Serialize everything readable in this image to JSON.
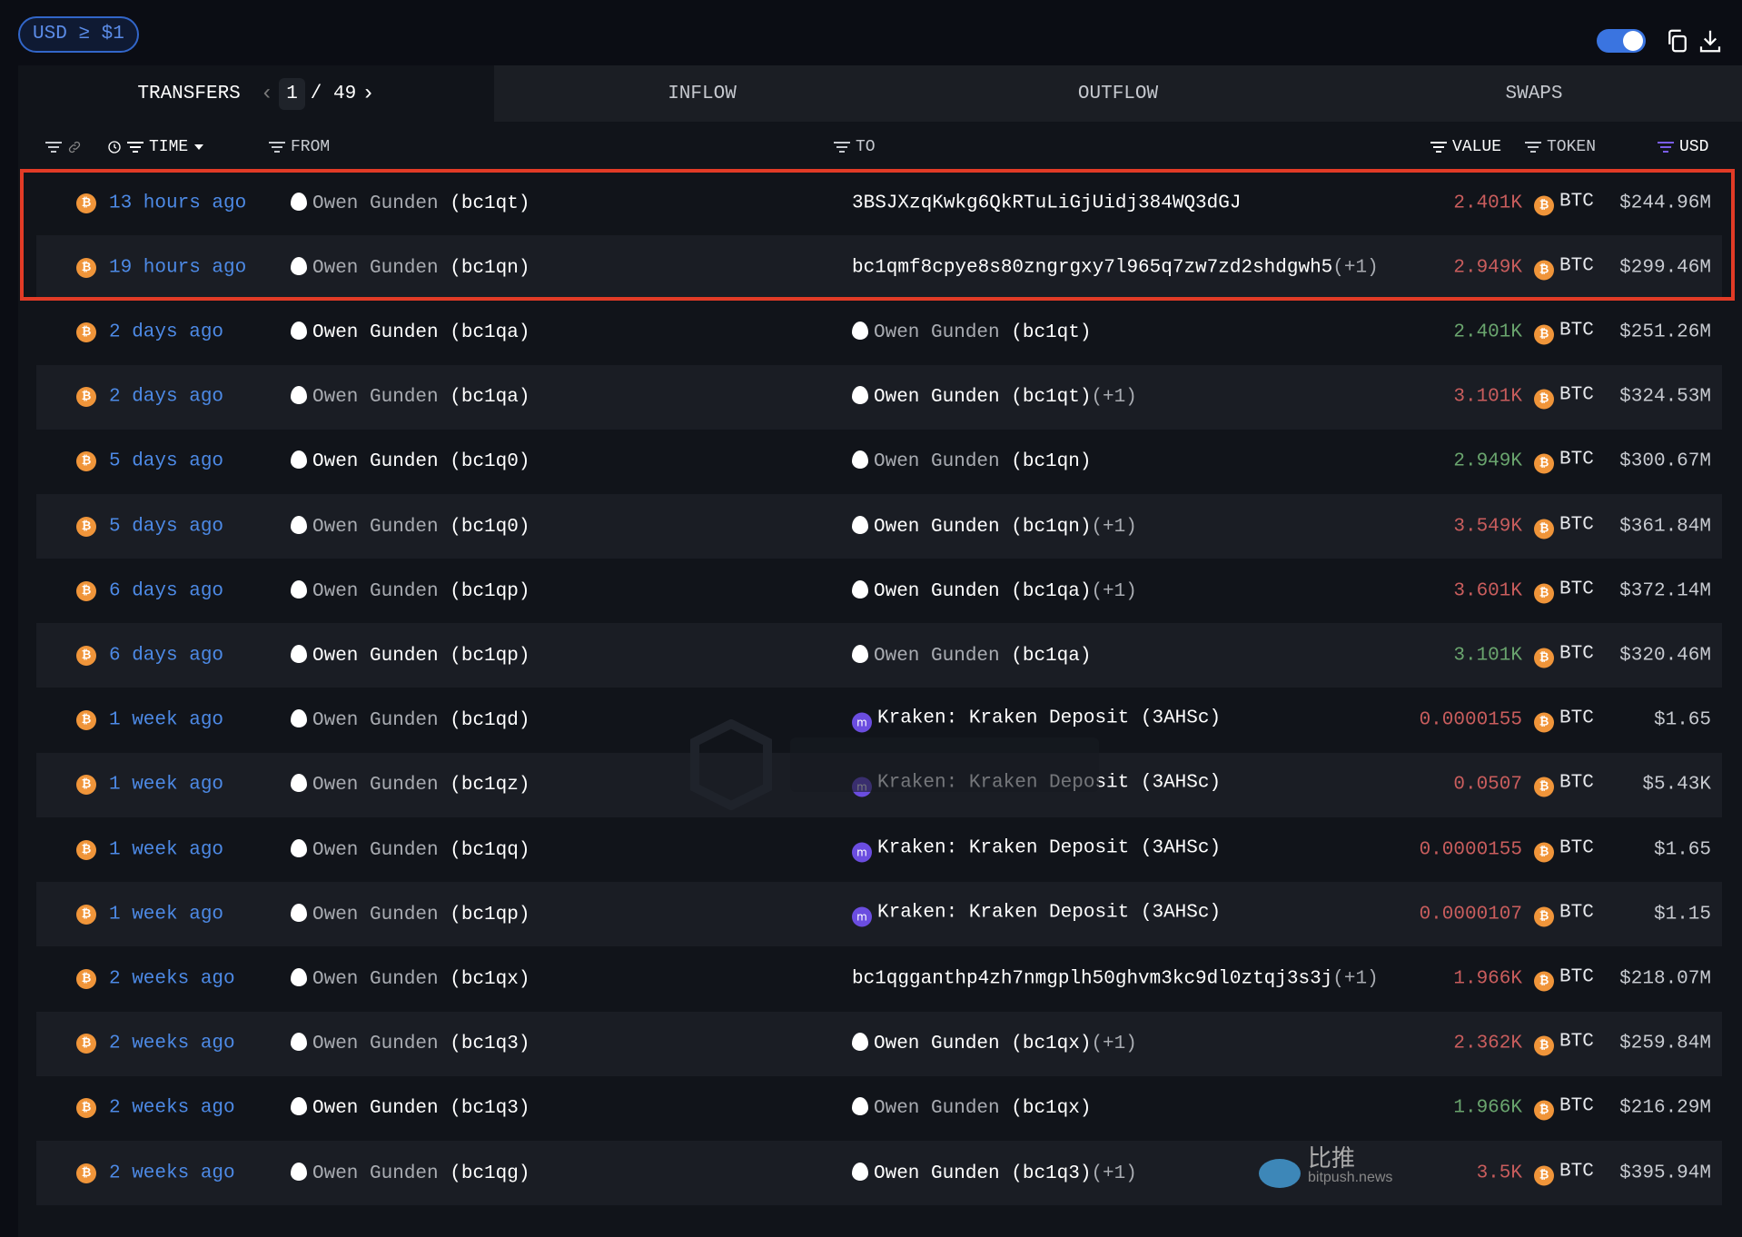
{
  "filter_badge": "USD ≥ $1",
  "toolbar": {
    "toggle_on": true,
    "copy_icon": "copy-icon",
    "download_icon": "download-icon"
  },
  "tabs": [
    {
      "label": "TRANSFERS",
      "active": true
    },
    {
      "label": "INFLOW"
    },
    {
      "label": "OUTFLOW"
    },
    {
      "label": "SWAPS"
    }
  ],
  "pager": {
    "current": "1",
    "total": "/ 49"
  },
  "columns": {
    "time": "TIME",
    "from": "FROM",
    "to": "TO",
    "value": "VALUE",
    "token": "TOKEN",
    "usd": "USD"
  },
  "watermark": "ARKHAM",
  "source_watermark": {
    "cn": "比推",
    "en": "bitpush.news"
  },
  "colors": {
    "outflow": "#c95d5d",
    "inflow": "#6aa56e",
    "link": "#4d8ae6",
    "highlight_box": "#e23b26"
  },
  "rows": [
    {
      "time": "13 hours ago",
      "from_name": "Owen Gunden",
      "from_addr": "(bc1qt)",
      "from_hi": false,
      "to_type": "addr",
      "to_name": "",
      "to_addr": "3BSJXzqKwkg6QkRTuLiGjUidj384WQ3dGJ",
      "to_extra": "",
      "to_hi": false,
      "value": "2.401K",
      "dir": "out",
      "token": "BTC",
      "usd": "$244.96M"
    },
    {
      "time": "19 hours ago",
      "from_name": "Owen Gunden",
      "from_addr": "(bc1qn)",
      "from_hi": false,
      "to_type": "addr",
      "to_name": "",
      "to_addr": "bc1qmf8cpye8s80zngrgxy7l965q7zw7zd2shdgwh5",
      "to_extra": "(+1)",
      "to_hi": false,
      "value": "2.949K",
      "dir": "out",
      "token": "BTC",
      "usd": "$299.46M"
    },
    {
      "time": "2 days ago",
      "from_name": "Owen Gunden",
      "from_addr": "(bc1qa)",
      "from_hi": true,
      "to_type": "entity",
      "to_name": "Owen Gunden",
      "to_addr": "(bc1qt)",
      "to_extra": "",
      "to_hi": false,
      "value": "2.401K",
      "dir": "in",
      "token": "BTC",
      "usd": "$251.26M"
    },
    {
      "time": "2 days ago",
      "from_name": "Owen Gunden",
      "from_addr": "(bc1qa)",
      "from_hi": false,
      "to_type": "entity",
      "to_name": "Owen Gunden",
      "to_addr": "(bc1qt)",
      "to_extra": "(+1)",
      "to_hi": true,
      "value": "3.101K",
      "dir": "out",
      "token": "BTC",
      "usd": "$324.53M"
    },
    {
      "time": "5 days ago",
      "from_name": "Owen Gunden",
      "from_addr": "(bc1q0)",
      "from_hi": true,
      "to_type": "entity",
      "to_name": "Owen Gunden",
      "to_addr": "(bc1qn)",
      "to_extra": "",
      "to_hi": false,
      "value": "2.949K",
      "dir": "in",
      "token": "BTC",
      "usd": "$300.67M"
    },
    {
      "time": "5 days ago",
      "from_name": "Owen Gunden",
      "from_addr": "(bc1q0)",
      "from_hi": false,
      "to_type": "entity",
      "to_name": "Owen Gunden",
      "to_addr": "(bc1qn)",
      "to_extra": "(+1)",
      "to_hi": true,
      "value": "3.549K",
      "dir": "out",
      "token": "BTC",
      "usd": "$361.84M"
    },
    {
      "time": "6 days ago",
      "from_name": "Owen Gunden",
      "from_addr": "(bc1qp)",
      "from_hi": false,
      "to_type": "entity",
      "to_name": "Owen Gunden",
      "to_addr": "(bc1qa)",
      "to_extra": "(+1)",
      "to_hi": true,
      "value": "3.601K",
      "dir": "out",
      "token": "BTC",
      "usd": "$372.14M"
    },
    {
      "time": "6 days ago",
      "from_name": "Owen Gunden",
      "from_addr": "(bc1qp)",
      "from_hi": true,
      "to_type": "entity",
      "to_name": "Owen Gunden",
      "to_addr": "(bc1qa)",
      "to_extra": "",
      "to_hi": false,
      "value": "3.101K",
      "dir": "in",
      "token": "BTC",
      "usd": "$320.46M"
    },
    {
      "time": "1 week ago",
      "from_name": "Owen Gunden",
      "from_addr": "(bc1qd)",
      "from_hi": false,
      "to_type": "kraken",
      "to_name": "Kraken: Kraken Deposit",
      "to_addr": "(3AHSc)",
      "to_extra": "",
      "to_hi": true,
      "value": "0.0000155",
      "dir": "out",
      "token": "BTC",
      "usd": "$1.65"
    },
    {
      "time": "1 week ago",
      "from_name": "Owen Gunden",
      "from_addr": "(bc1qz)",
      "from_hi": false,
      "to_type": "kraken",
      "to_name": "Kraken: Kraken Deposit",
      "to_addr": "(3AHSc)",
      "to_extra": "",
      "to_hi": true,
      "value": "0.0507",
      "dir": "out",
      "token": "BTC",
      "usd": "$5.43K"
    },
    {
      "time": "1 week ago",
      "from_name": "Owen Gunden",
      "from_addr": "(bc1qq)",
      "from_hi": false,
      "to_type": "kraken",
      "to_name": "Kraken: Kraken Deposit",
      "to_addr": "(3AHSc)",
      "to_extra": "",
      "to_hi": true,
      "value": "0.0000155",
      "dir": "out",
      "token": "BTC",
      "usd": "$1.65"
    },
    {
      "time": "1 week ago",
      "from_name": "Owen Gunden",
      "from_addr": "(bc1qp)",
      "from_hi": false,
      "to_type": "kraken",
      "to_name": "Kraken: Kraken Deposit",
      "to_addr": "(3AHSc)",
      "to_extra": "",
      "to_hi": true,
      "value": "0.0000107",
      "dir": "out",
      "token": "BTC",
      "usd": "$1.15"
    },
    {
      "time": "2 weeks ago",
      "from_name": "Owen Gunden",
      "from_addr": "(bc1qx)",
      "from_hi": false,
      "to_type": "addr",
      "to_name": "",
      "to_addr": "bc1qgganthp4zh7nmgplh50ghvm3kc9dl0ztqj3s3j",
      "to_extra": "(+1)",
      "to_hi": false,
      "value": "1.966K",
      "dir": "out",
      "token": "BTC",
      "usd": "$218.07M"
    },
    {
      "time": "2 weeks ago",
      "from_name": "Owen Gunden",
      "from_addr": "(bc1q3)",
      "from_hi": false,
      "to_type": "entity",
      "to_name": "Owen Gunden",
      "to_addr": "(bc1qx)",
      "to_extra": "(+1)",
      "to_hi": true,
      "value": "2.362K",
      "dir": "out",
      "token": "BTC",
      "usd": "$259.84M"
    },
    {
      "time": "2 weeks ago",
      "from_name": "Owen Gunden",
      "from_addr": "(bc1q3)",
      "from_hi": true,
      "to_type": "entity",
      "to_name": "Owen Gunden",
      "to_addr": "(bc1qx)",
      "to_extra": "",
      "to_hi": false,
      "value": "1.966K",
      "dir": "in",
      "token": "BTC",
      "usd": "$216.29M"
    },
    {
      "time": "2 weeks ago",
      "from_name": "Owen Gunden",
      "from_addr": "(bc1qg)",
      "from_hi": false,
      "to_type": "entity",
      "to_name": "Owen Gunden",
      "to_addr": "(bc1q3)",
      "to_extra": "(+1)",
      "to_hi": true,
      "value": "3.5K",
      "dir": "out",
      "token": "BTC",
      "usd": "$395.94M"
    }
  ]
}
